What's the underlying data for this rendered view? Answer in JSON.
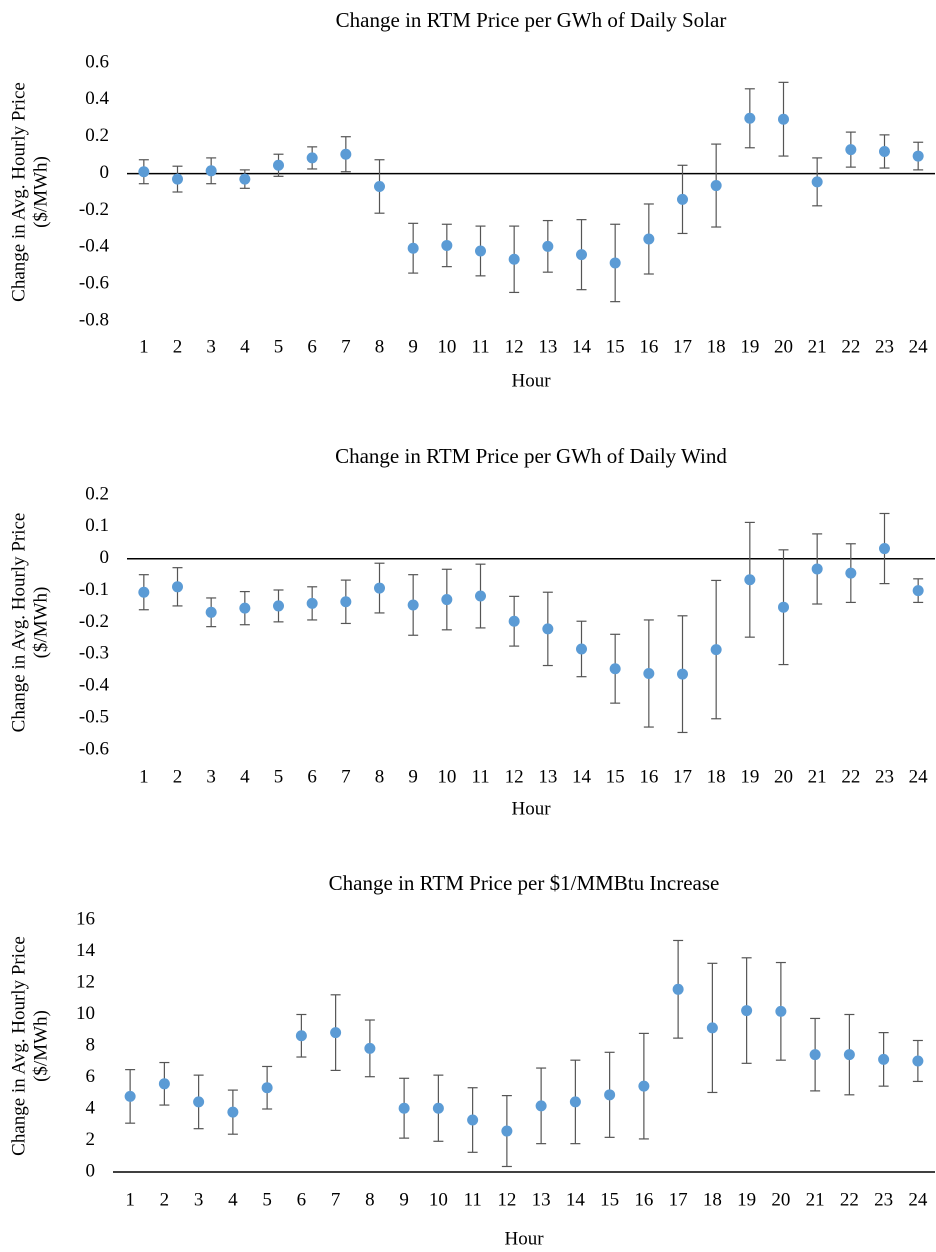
{
  "chart_data": [
    {
      "type": "errorbar",
      "title": "Change in RTM Price per GWh of Daily Solar",
      "xlabel": "Hour",
      "ylabel": [
        "Change in Avg. Hourly Price",
        "($/MWh)"
      ],
      "categories": [
        "1",
        "2",
        "3",
        "4",
        "5",
        "6",
        "7",
        "8",
        "9",
        "10",
        "11",
        "12",
        "13",
        "14",
        "15",
        "16",
        "17",
        "18",
        "19",
        "20",
        "21",
        "22",
        "23",
        "24"
      ],
      "color": "#5b9bd5",
      "error_color": "#555555",
      "values": [
        0.01,
        -0.03,
        0.015,
        -0.03,
        0.045,
        0.085,
        0.105,
        -0.07,
        -0.405,
        -0.39,
        -0.42,
        -0.465,
        -0.395,
        -0.44,
        -0.485,
        -0.355,
        -0.14,
        -0.065,
        0.3,
        0.295,
        -0.045,
        0.13,
        0.12,
        0.095
      ],
      "errors": [
        0.065,
        0.07,
        0.07,
        0.05,
        0.06,
        0.06,
        0.095,
        0.145,
        0.135,
        0.115,
        0.135,
        0.18,
        0.14,
        0.19,
        0.21,
        0.19,
        0.185,
        0.225,
        0.16,
        0.2,
        0.13,
        0.095,
        0.09,
        0.075
      ],
      "ylim": [
        -0.8,
        0.6
      ],
      "yticks": [
        -0.8,
        -0.6,
        -0.4,
        -0.2,
        0,
        0.2,
        0.4,
        0.6
      ]
    },
    {
      "type": "errorbar",
      "title": "Change in RTM Price per GWh of Daily Wind",
      "xlabel": "Hour",
      "ylabel": [
        "Change in Avg. Hourly Price",
        "($/MWh)"
      ],
      "categories": [
        "1",
        "2",
        "3",
        "4",
        "5",
        "6",
        "7",
        "8",
        "9",
        "10",
        "11",
        "12",
        "13",
        "14",
        "15",
        "16",
        "17",
        "18",
        "19",
        "20",
        "21",
        "22",
        "23",
        "24"
      ],
      "color": "#5b9bd5",
      "error_color": "#555555",
      "values": [
        -0.105,
        -0.088,
        -0.168,
        -0.155,
        -0.148,
        -0.14,
        -0.135,
        -0.092,
        -0.145,
        -0.128,
        -0.117,
        -0.196,
        -0.22,
        -0.283,
        -0.345,
        -0.36,
        -0.362,
        -0.285,
        -0.066,
        -0.152,
        -0.032,
        -0.045,
        0.032,
        -0.1
      ],
      "errors": [
        0.055,
        0.06,
        0.045,
        0.052,
        0.05,
        0.052,
        0.068,
        0.078,
        0.095,
        0.095,
        0.1,
        0.078,
        0.115,
        0.087,
        0.108,
        0.168,
        0.183,
        0.217,
        0.18,
        0.18,
        0.11,
        0.092,
        0.11,
        0.037
      ],
      "ylim": [
        -0.6,
        0.2
      ],
      "yticks": [
        -0.6,
        -0.5,
        -0.4,
        -0.3,
        -0.2,
        -0.1,
        0,
        0.1,
        0.2
      ]
    },
    {
      "type": "errorbar",
      "title": "Change in RTM Price per $1/MMBtu Increase",
      "xlabel": "Hour",
      "ylabel": [
        "Change in Avg. Hourly Price",
        "($/MWh)"
      ],
      "categories": [
        "1",
        "2",
        "3",
        "4",
        "5",
        "6",
        "7",
        "8",
        "9",
        "10",
        "11",
        "12",
        "13",
        "14",
        "15",
        "16",
        "17",
        "18",
        "19",
        "20",
        "21",
        "22",
        "23",
        "24"
      ],
      "color": "#5b9bd5",
      "error_color": "#555555",
      "values": [
        4.8,
        5.6,
        4.45,
        3.8,
        5.35,
        8.65,
        8.85,
        7.85,
        4.05,
        4.05,
        3.3,
        2.6,
        4.2,
        4.45,
        4.9,
        5.45,
        11.6,
        9.15,
        10.25,
        10.2,
        7.45,
        7.45,
        7.15,
        7.05
      ],
      "errors": [
        1.7,
        1.35,
        1.7,
        1.4,
        1.35,
        1.35,
        2.4,
        1.8,
        1.9,
        2.1,
        2.05,
        2.25,
        2.4,
        2.65,
        2.7,
        3.35,
        3.1,
        4.1,
        3.35,
        3.1,
        2.3,
        2.55,
        1.7,
        1.3
      ],
      "ylim": [
        0,
        16
      ],
      "yticks": [
        0,
        2,
        4,
        6,
        8,
        10,
        12,
        14,
        16
      ]
    }
  ]
}
